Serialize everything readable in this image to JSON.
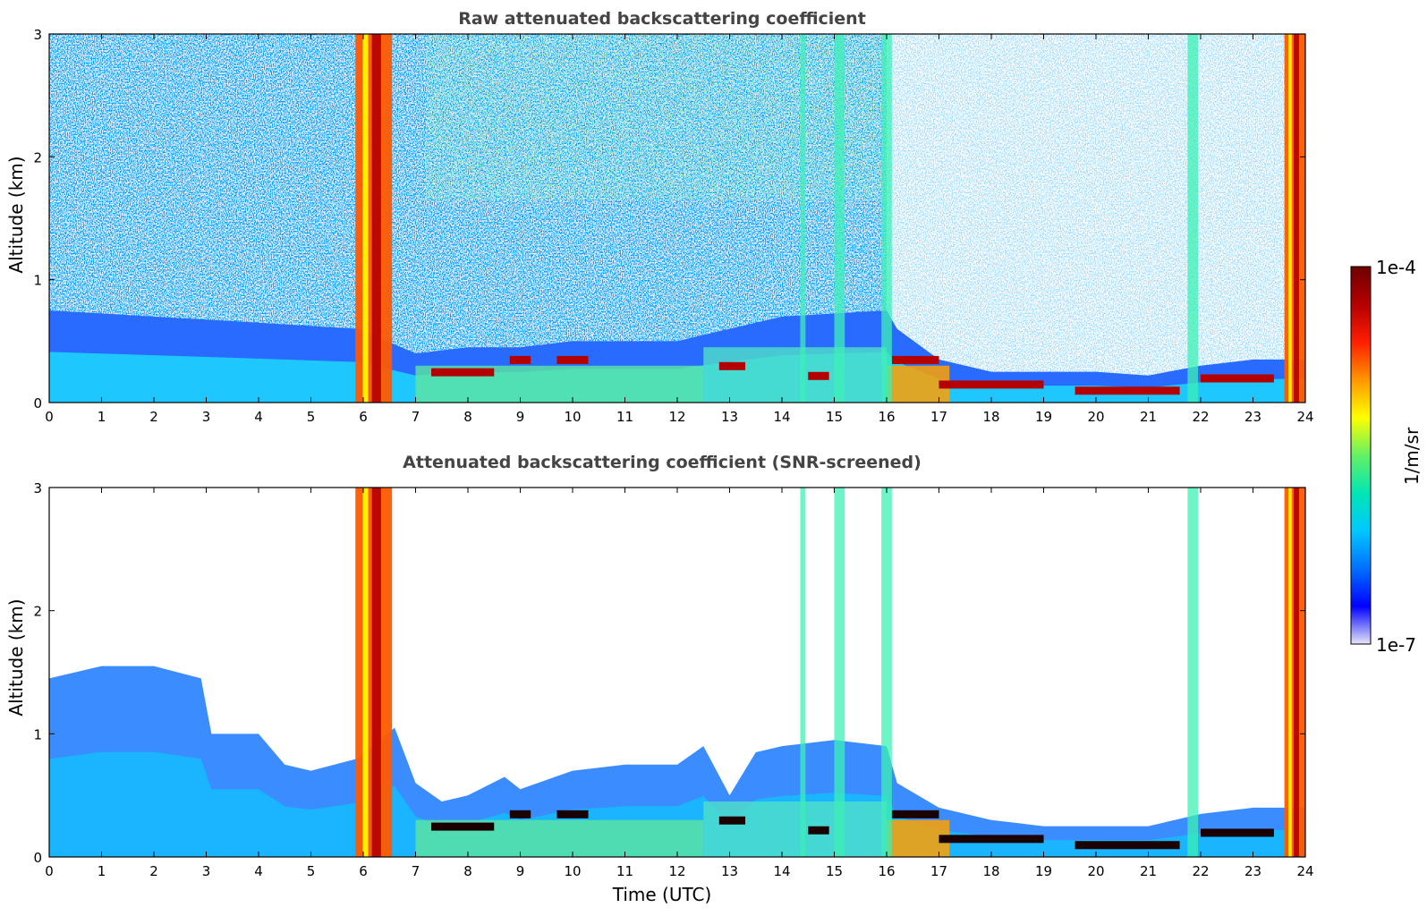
{
  "chart_data": [
    {
      "type": "heatmap",
      "title": "Raw attenuated backscattering coefficient",
      "xlabel": "",
      "ylabel": "Altitude (km)",
      "xlim": [
        0,
        24
      ],
      "ylim": [
        0,
        3
      ],
      "x_ticks": [
        "0",
        "1",
        "2",
        "3",
        "4",
        "5",
        "6",
        "7",
        "8",
        "9",
        "10",
        "11",
        "12",
        "13",
        "14",
        "15",
        "16",
        "17",
        "18",
        "19",
        "20",
        "21",
        "22",
        "23",
        "24"
      ],
      "y_ticks": [
        "0",
        "1",
        "2",
        "3"
      ],
      "screening": "none",
      "background_noise": "high aloft, dense blue/green speckle up to 3 km before 16 UTC, sparse after",
      "boundary_layer": [
        {
          "x": 0,
          "top": 0.75
        },
        {
          "x": 2,
          "top": 0.7
        },
        {
          "x": 4,
          "top": 0.65
        },
        {
          "x": 5.9,
          "top": 0.6
        },
        {
          "x": 7,
          "top": 0.4
        },
        {
          "x": 8,
          "top": 0.45
        },
        {
          "x": 9,
          "top": 0.45
        },
        {
          "x": 10,
          "top": 0.5
        },
        {
          "x": 11,
          "top": 0.5
        },
        {
          "x": 12,
          "top": 0.5
        },
        {
          "x": 13,
          "top": 0.6
        },
        {
          "x": 14,
          "top": 0.7
        },
        {
          "x": 16,
          "top": 0.75
        },
        {
          "x": 16.2,
          "top": 0.6
        },
        {
          "x": 17,
          "top": 0.35
        },
        {
          "x": 18,
          "top": 0.25
        },
        {
          "x": 19,
          "top": 0.25
        },
        {
          "x": 20,
          "top": 0.25
        },
        {
          "x": 21,
          "top": 0.22
        },
        {
          "x": 22,
          "top": 0.3
        },
        {
          "x": 23,
          "top": 0.35
        },
        {
          "x": 24,
          "top": 0.35
        }
      ],
      "strong_layers": [
        {
          "x_start": 7.3,
          "x_end": 8.5,
          "altitude": 0.25
        },
        {
          "x_start": 8.8,
          "x_end": 9.2,
          "altitude": 0.35
        },
        {
          "x_start": 9.7,
          "x_end": 10.3,
          "altitude": 0.35
        },
        {
          "x_start": 12.8,
          "x_end": 13.3,
          "altitude": 0.3
        },
        {
          "x_start": 14.5,
          "x_end": 14.9,
          "altitude": 0.22
        },
        {
          "x_start": 16.1,
          "x_end": 17.0,
          "altitude": 0.35
        },
        {
          "x_start": 17.0,
          "x_end": 19.0,
          "altitude": 0.15
        },
        {
          "x_start": 19.6,
          "x_end": 21.6,
          "altitude": 0.1
        },
        {
          "x_start": 22.0,
          "x_end": 23.4,
          "altitude": 0.2
        }
      ],
      "precipitation_columns": [
        {
          "x_start": 5.85,
          "x_end": 6.55,
          "intensity": "very high"
        },
        {
          "x_start": 14.35,
          "x_end": 14.45,
          "intensity": "moderate"
        },
        {
          "x_start": 15.0,
          "x_end": 15.2,
          "intensity": "moderate"
        },
        {
          "x_start": 15.9,
          "x_end": 16.1,
          "intensity": "moderate"
        },
        {
          "x_start": 21.75,
          "x_end": 21.95,
          "intensity": "moderate"
        },
        {
          "x_start": 23.6,
          "x_end": 24.0,
          "intensity": "very high"
        }
      ]
    },
    {
      "type": "heatmap",
      "title": "Attenuated backscattering coefficient (SNR-screened)",
      "xlabel": "Time (UTC)",
      "ylabel": "Altitude (km)",
      "xlim": [
        0,
        24
      ],
      "ylim": [
        0,
        3
      ],
      "x_ticks": [
        "0",
        "1",
        "2",
        "3",
        "4",
        "5",
        "6",
        "7",
        "8",
        "9",
        "10",
        "11",
        "12",
        "13",
        "14",
        "15",
        "16",
        "17",
        "18",
        "19",
        "20",
        "21",
        "22",
        "23",
        "24"
      ],
      "y_ticks": [
        "0",
        "1",
        "2",
        "3"
      ],
      "screening": "SNR",
      "aerosol_top": [
        {
          "x": 0,
          "top": 1.45
        },
        {
          "x": 1,
          "top": 1.55
        },
        {
          "x": 2,
          "top": 1.55
        },
        {
          "x": 2.9,
          "top": 1.45
        },
        {
          "x": 3.1,
          "top": 1.0
        },
        {
          "x": 4,
          "top": 1.0
        },
        {
          "x": 4.5,
          "top": 0.75
        },
        {
          "x": 5,
          "top": 0.7
        },
        {
          "x": 5.9,
          "top": 0.8
        },
        {
          "x": 6.6,
          "top": 1.05
        },
        {
          "x": 7,
          "top": 0.6
        },
        {
          "x": 7.5,
          "top": 0.45
        },
        {
          "x": 8,
          "top": 0.5
        },
        {
          "x": 8.7,
          "top": 0.65
        },
        {
          "x": 9,
          "top": 0.55
        },
        {
          "x": 10,
          "top": 0.7
        },
        {
          "x": 11,
          "top": 0.75
        },
        {
          "x": 12,
          "top": 0.75
        },
        {
          "x": 12.5,
          "top": 0.9
        },
        {
          "x": 13,
          "top": 0.5
        },
        {
          "x": 13.5,
          "top": 0.85
        },
        {
          "x": 14,
          "top": 0.9
        },
        {
          "x": 15,
          "top": 0.95
        },
        {
          "x": 16,
          "top": 0.9
        },
        {
          "x": 16.2,
          "top": 0.6
        },
        {
          "x": 17,
          "top": 0.4
        },
        {
          "x": 18,
          "top": 0.3
        },
        {
          "x": 19,
          "top": 0.25
        },
        {
          "x": 20,
          "top": 0.25
        },
        {
          "x": 21,
          "top": 0.25
        },
        {
          "x": 22,
          "top": 0.35
        },
        {
          "x": 23,
          "top": 0.4
        },
        {
          "x": 24,
          "top": 0.4
        }
      ]
    }
  ],
  "colorbar": {
    "label": "1/m/sr",
    "max_label": "1e-4",
    "min_label": "1e-7",
    "scale": "log",
    "stops": [
      "#e6e6f7",
      "#0000ff",
      "#0070ff",
      "#00c8ff",
      "#00e6b4",
      "#64f064",
      "#ffff00",
      "#ff9600",
      "#ff1e00",
      "#b40000",
      "#6e0000"
    ]
  }
}
